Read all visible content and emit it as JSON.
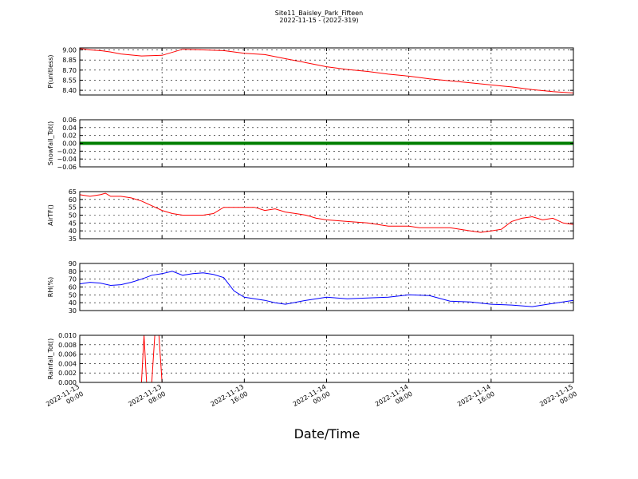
{
  "figure": {
    "title_line1": "Site11_Baisley_Park_Fifteen",
    "title_line2": "2022-11-15 - (2022-319)",
    "x_title": "Date/Time"
  },
  "x_axis": {
    "tick_labels": [
      [
        "2022-11-13",
        "00:00"
      ],
      [
        "2022-11-13",
        "08:00"
      ],
      [
        "2022-11-13",
        "16:00"
      ],
      [
        "2022-11-14",
        "00:00"
      ],
      [
        "2022-11-14",
        "08:00"
      ],
      [
        "2022-11-14",
        "16:00"
      ],
      [
        "2022-11-15",
        "00:00"
      ]
    ]
  },
  "chart_data": [
    {
      "type": "line",
      "ylabel": "P(unitless)",
      "ylim": [
        8.33,
        9.03
      ],
      "yticks": [
        "9.00",
        "8.85",
        "8.70",
        "8.55",
        "8.40"
      ],
      "ytick_values": [
        9.0,
        8.85,
        8.7,
        8.55,
        8.4
      ],
      "xlim_hours": [
        0,
        48
      ],
      "grid": true,
      "color": "#ff0000",
      "x_hours": [
        0,
        1,
        2,
        3,
        4,
        6,
        8,
        10,
        12,
        14,
        16,
        18,
        20,
        22,
        24,
        26,
        28,
        30,
        32,
        34,
        36,
        38,
        40,
        42,
        44,
        46,
        48
      ],
      "y": [
        9.02,
        9.0,
        8.99,
        8.97,
        8.94,
        8.91,
        8.92,
        9.01,
        9.0,
        8.99,
        8.95,
        8.93,
        8.87,
        8.81,
        8.75,
        8.71,
        8.68,
        8.64,
        8.61,
        8.57,
        8.54,
        8.51,
        8.48,
        8.45,
        8.41,
        8.38,
        8.36
      ]
    },
    {
      "type": "scatter",
      "ylabel": "Snowfall_Tot()",
      "ylim": [
        -0.06,
        0.06
      ],
      "yticks": [
        "0.06",
        "0.04",
        "0.02",
        "0.00",
        "−0.02",
        "−0.04",
        "−0.06"
      ],
      "ytick_values": [
        0.06,
        0.04,
        0.02,
        0.0,
        -0.02,
        -0.04,
        -0.06
      ],
      "xlim_hours": [
        0,
        48
      ],
      "grid": true,
      "color": "#007f00",
      "x_hours": [
        0,
        48
      ],
      "y_constant": 0.0
    },
    {
      "type": "line",
      "ylabel": "AirTF()",
      "ylim": [
        35,
        65
      ],
      "yticks": [
        "65",
        "60",
        "55",
        "50",
        "45",
        "40",
        "35"
      ],
      "ytick_values": [
        65,
        60,
        55,
        50,
        45,
        40,
        35
      ],
      "xlim_hours": [
        0,
        48
      ],
      "grid": true,
      "color": "#ff0000",
      "x_hours": [
        0,
        1,
        2,
        2.5,
        3,
        4,
        5,
        6,
        7,
        8,
        9,
        10,
        11,
        12,
        13,
        14,
        15,
        16,
        17,
        18,
        19,
        20,
        21,
        22,
        23,
        24,
        26,
        28,
        30,
        31,
        32,
        33,
        34,
        35,
        36,
        37,
        38,
        39,
        40,
        41,
        42,
        43,
        44,
        45,
        46,
        47,
        48
      ],
      "y": [
        63,
        62,
        63,
        64,
        62,
        62,
        61,
        59,
        56,
        53,
        51,
        50,
        50,
        50,
        51,
        55,
        55,
        55,
        55,
        53,
        54,
        52,
        51,
        50,
        48,
        47,
        46,
        45,
        43,
        43,
        43,
        42,
        42,
        42,
        42,
        41,
        40,
        39,
        40,
        41,
        46,
        48,
        49,
        47,
        48,
        45,
        44
      ]
    },
    {
      "type": "line",
      "ylabel": "RH(%)",
      "ylim": [
        30,
        90
      ],
      "yticks": [
        "90",
        "80",
        "70",
        "60",
        "50",
        "40",
        "30"
      ],
      "ytick_values": [
        90,
        80,
        70,
        60,
        50,
        40,
        30
      ],
      "xlim_hours": [
        0,
        48
      ],
      "grid": true,
      "color": "#0000ff",
      "x_hours": [
        0,
        1,
        2,
        3,
        4,
        5,
        6,
        7,
        8,
        9,
        10,
        11,
        12,
        13,
        14,
        15,
        16,
        17,
        18,
        19,
        20,
        22,
        24,
        26,
        28,
        30,
        32,
        34,
        36,
        38,
        40,
        42,
        44,
        46,
        48
      ],
      "y": [
        64,
        66,
        65,
        62,
        63,
        66,
        70,
        75,
        77,
        80,
        75,
        77,
        78,
        76,
        72,
        55,
        47,
        45,
        43,
        40,
        38,
        43,
        47,
        45,
        46,
        47,
        50,
        49,
        42,
        41,
        38,
        37,
        35,
        39,
        43
      ]
    },
    {
      "type": "line",
      "ylabel": "Rainfall_Tot()",
      "ylim": [
        0,
        0.01
      ],
      "yticks": [
        "0.010",
        "0.008",
        "0.006",
        "0.004",
        "0.002",
        "0.000"
      ],
      "ytick_values": [
        0.01,
        0.008,
        0.006,
        0.004,
        0.002,
        0.0
      ],
      "xlim_hours": [
        0,
        48
      ],
      "grid": true,
      "color": "#ff0000",
      "x_hours": [
        0,
        6,
        6.25,
        6.5,
        7,
        7.3,
        7.5,
        7.7,
        8,
        48
      ],
      "y": [
        0,
        0,
        0.01,
        0,
        0,
        0.01,
        0.01,
        0.01,
        0,
        0
      ]
    }
  ]
}
